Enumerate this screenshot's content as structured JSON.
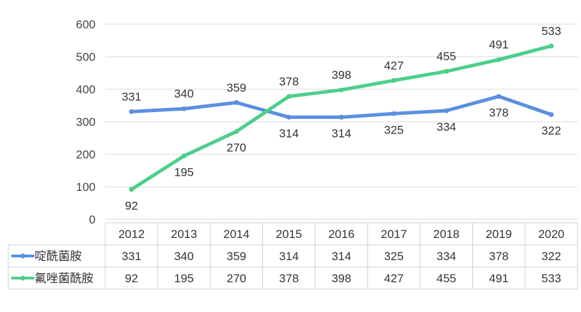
{
  "chart_data": {
    "type": "line",
    "title": "",
    "xlabel": "",
    "ylabel": "",
    "ylim": [
      0,
      600
    ],
    "yticks": [
      0,
      100,
      200,
      300,
      400,
      500,
      600
    ],
    "categories": [
      "2012",
      "2013",
      "2014",
      "2015",
      "2016",
      "2017",
      "2018",
      "2019",
      "2020"
    ],
    "grid": true,
    "legend": "data-table-left",
    "series": [
      {
        "name": "啶酰菌胺",
        "color": "#5b8fe0",
        "values": [
          331,
          340,
          359,
          314,
          314,
          325,
          334,
          378,
          322
        ]
      },
      {
        "name": "氟唑菌酰胺",
        "color": "#4ccf8a",
        "values": [
          92,
          195,
          270,
          378,
          398,
          427,
          455,
          491,
          533
        ]
      }
    ]
  }
}
